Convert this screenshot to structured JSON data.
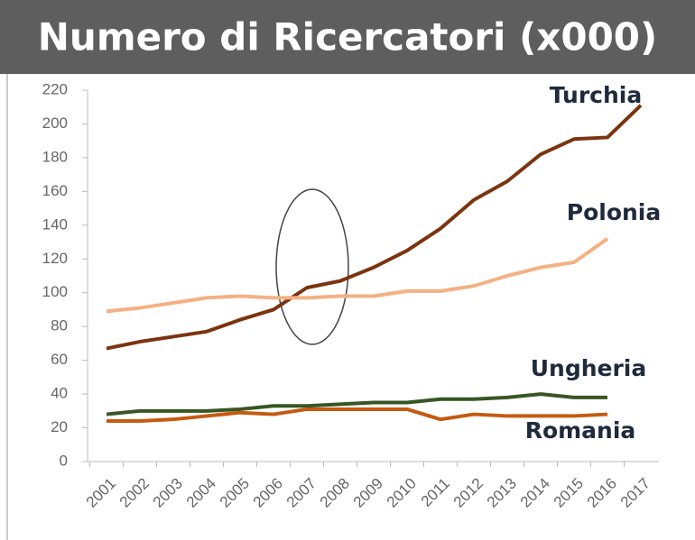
{
  "chart_data": {
    "type": "line",
    "title": "Numero di Ricercatori (x000)",
    "categories": [
      "2001",
      "2002",
      "2003",
      "2004",
      "2005",
      "2006",
      "2007",
      "2008",
      "2009",
      "2010",
      "2011",
      "2012",
      "2013",
      "2014",
      "2015",
      "2016",
      "2017"
    ],
    "ylim": [
      0,
      220
    ],
    "yticks": [
      0,
      20,
      40,
      60,
      80,
      100,
      120,
      140,
      160,
      180,
      200,
      220
    ],
    "grid": false,
    "series": [
      {
        "name": "Turchia",
        "color": "#7b3410",
        "values": [
          67,
          71,
          74,
          77,
          84,
          90,
          103,
          107,
          115,
          125,
          138,
          155,
          166,
          182,
          191,
          192,
          211
        ]
      },
      {
        "name": "Polonia",
        "color": "#f4b183",
        "values": [
          89,
          91,
          94,
          97,
          98,
          97,
          97,
          98,
          98,
          101,
          101,
          104,
          110,
          115,
          118,
          132,
          null
        ]
      },
      {
        "name": "Ungheria",
        "color": "#375623",
        "values": [
          28,
          30,
          30,
          30,
          31,
          33,
          33,
          34,
          35,
          35,
          37,
          37,
          38,
          40,
          38,
          38,
          null
        ]
      },
      {
        "name": "Romania",
        "color": "#c55a11",
        "values": [
          24,
          24,
          25,
          27,
          29,
          28,
          31,
          31,
          31,
          31,
          25,
          28,
          27,
          27,
          27,
          28,
          null
        ]
      }
    ]
  }
}
